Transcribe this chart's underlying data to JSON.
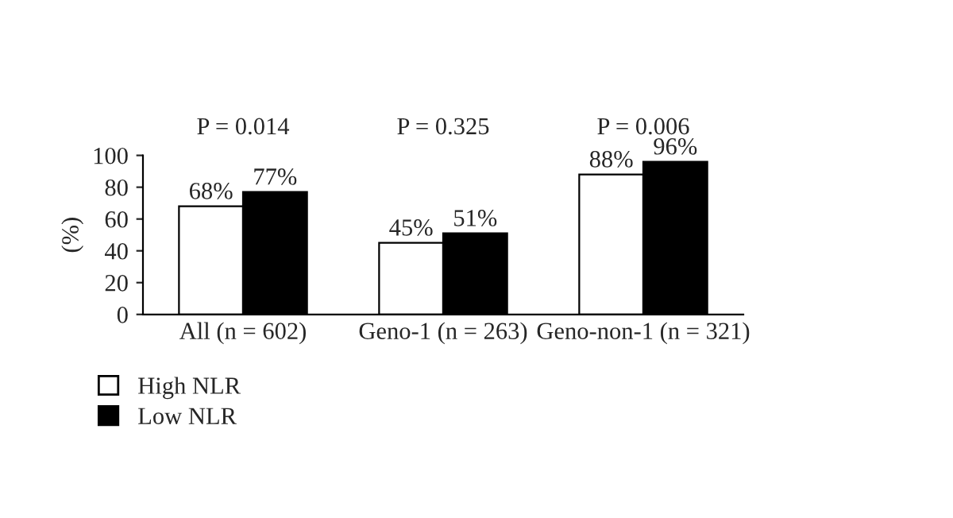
{
  "chart_data": {
    "type": "bar",
    "ylabel": "(%)",
    "categories": [
      "All (n = 602)",
      "Geno-1 (n = 263)",
      "Geno-non-1 (n = 321)"
    ],
    "series": [
      {
        "name": "High NLR",
        "color": "#ffffff",
        "values": [
          68,
          45,
          88
        ],
        "value_labels": [
          "68%",
          "45%",
          "88%"
        ]
      },
      {
        "name": "Low NLR",
        "color": "#000000",
        "values": [
          77,
          51,
          96
        ],
        "value_labels": [
          "77%",
          "51%",
          "96%"
        ]
      }
    ],
    "ylim": [
      0,
      100
    ],
    "yticks": [
      0,
      20,
      40,
      60,
      80,
      100
    ],
    "annotations": [
      "P = 0.014",
      "P = 0.325",
      "P = 0.006"
    ],
    "legend": "bottom left",
    "grid": false
  }
}
